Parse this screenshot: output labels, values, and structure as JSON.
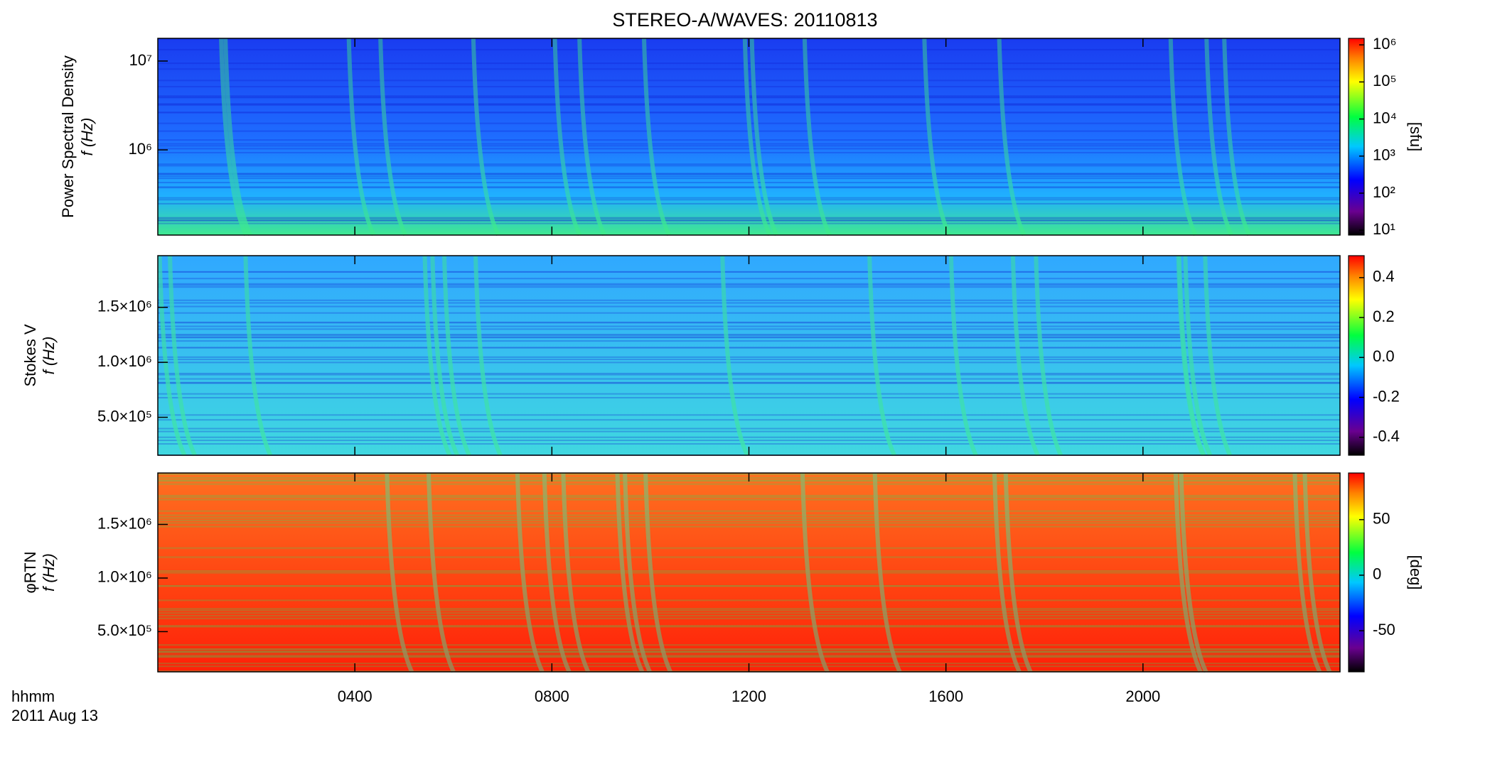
{
  "title": "STEREO-A/WAVES: 20110813",
  "x_label_lines": [
    "hhmm",
    "2011 Aug 13"
  ],
  "chart_data": [
    {
      "type": "spectrogram",
      "ylabel": "Power Spectral Density",
      "ylabel2": "f (Hz)",
      "xlim": [
        0,
        24
      ],
      "xticks": [
        {
          "value": 4,
          "label": "0400"
        },
        {
          "value": 8,
          "label": "0800"
        },
        {
          "value": 12,
          "label": "1200"
        },
        {
          "value": 16,
          "label": "1600"
        },
        {
          "value": 20,
          "label": "2000"
        }
      ],
      "ylog": true,
      "ylim": [
        110000,
        18000000
      ],
      "yticks": [
        {
          "value": 1000000,
          "label": "10⁶"
        },
        {
          "value": 10000000,
          "label": "10⁷"
        }
      ],
      "clog": true,
      "clim": [
        7.4,
        1500000
      ],
      "clabel": "[sfu]",
      "cticks": [
        {
          "value": 10,
          "label": "10¹"
        },
        {
          "value": 100,
          "label": "10²"
        },
        {
          "value": 1000,
          "label": "10³"
        },
        {
          "value": 10000,
          "label": "10⁴"
        },
        {
          "value": 100000,
          "label": "10⁵"
        },
        {
          "value": 1000000,
          "label": "10⁶"
        }
      ]
    },
    {
      "type": "spectrogram",
      "ylabel": "Stokes V",
      "ylabel2": "f (Hz)",
      "xlim": [
        0,
        24
      ],
      "xticks": [
        {
          "value": 4,
          "label": "0400"
        },
        {
          "value": 8,
          "label": "0800"
        },
        {
          "value": 12,
          "label": "1200"
        },
        {
          "value": 16,
          "label": "1600"
        },
        {
          "value": 20,
          "label": "2000"
        }
      ],
      "ylog": false,
      "ylim": [
        155000,
        1970000
      ],
      "yticks": [
        {
          "value": 500000,
          "label": "5.0×10⁵"
        },
        {
          "value": 1000000,
          "label": "1.0×10⁶"
        },
        {
          "value": 1500000,
          "label": "1.5×10⁶"
        }
      ],
      "clog": false,
      "clim": [
        -0.49,
        0.51
      ],
      "cticks": [
        {
          "value": -0.4,
          "label": "-0.4"
        },
        {
          "value": -0.2,
          "label": "-0.2"
        },
        {
          "value": 0,
          "label": "0.0"
        },
        {
          "value": 0.2,
          "label": "0.2"
        },
        {
          "value": 0.4,
          "label": "0.4"
        }
      ]
    },
    {
      "type": "spectrogram",
      "ylabel": "φRTN",
      "ylabel2": "f (Hz)",
      "xlim": [
        0,
        24
      ],
      "xticks": [
        {
          "value": 4,
          "label": "0400"
        },
        {
          "value": 8,
          "label": "0800"
        },
        {
          "value": 12,
          "label": "1200"
        },
        {
          "value": 16,
          "label": "1600"
        },
        {
          "value": 20,
          "label": "2000"
        }
      ],
      "ylog": false,
      "ylim": [
        125000,
        1980000
      ],
      "yticks": [
        {
          "value": 500000,
          "label": "5.0×10⁵"
        },
        {
          "value": 1000000,
          "label": "1.0×10⁶"
        },
        {
          "value": 1500000,
          "label": "1.5×10⁶"
        }
      ],
      "clog": false,
      "clim": [
        -87,
        92
      ],
      "clabel": "[deg]",
      "cticks": [
        -50,
        0,
        50
      ]
    }
  ]
}
